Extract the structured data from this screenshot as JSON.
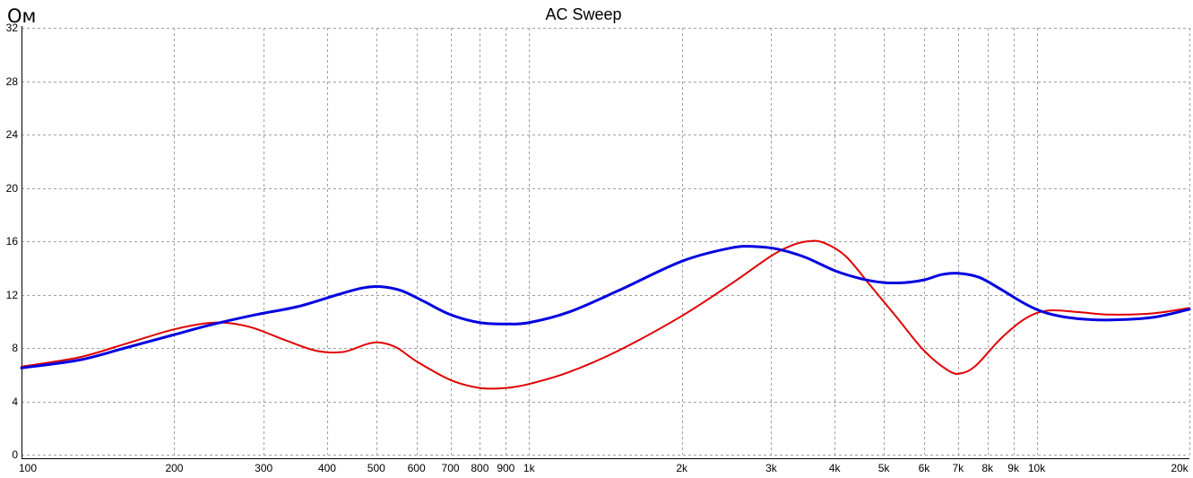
{
  "chart_data": {
    "type": "line",
    "title": "AC Sweep",
    "ylabel": "Ом",
    "xscale": "log",
    "xlim": [
      100,
      20000
    ],
    "ylim": [
      0,
      32
    ],
    "grid": true,
    "x_ticks": [
      100,
      200,
      300,
      400,
      500,
      600,
      700,
      800,
      900,
      1000,
      2000,
      3000,
      4000,
      5000,
      6000,
      7000,
      8000,
      9000,
      10000,
      20000
    ],
    "x_tick_labels": [
      "100",
      "200",
      "300",
      "400",
      "500",
      "600",
      "700",
      "800",
      "900",
      "1k",
      "2k",
      "3k",
      "4k",
      "5k",
      "6k",
      "7k",
      "8k",
      "9k",
      "10k",
      "20k"
    ],
    "y_ticks": [
      0,
      4,
      8,
      12,
      16,
      20,
      24,
      28,
      32
    ],
    "y_tick_labels": [
      "0",
      "4",
      "8",
      "12",
      "16",
      "20",
      "24",
      "28",
      "32"
    ],
    "series": [
      {
        "color": "#e00000",
        "x": [
          100,
          130,
          160,
          200,
          240,
          280,
          330,
          380,
          430,
          480,
          510,
          550,
          600,
          700,
          800,
          900,
          1000,
          1200,
          1500,
          2000,
          2500,
          3000,
          3300,
          3550,
          3800,
          4200,
          4700,
          5300,
          6000,
          6700,
          7100,
          7600,
          8500,
          9500,
          10500,
          12000,
          14000,
          17000,
          20000
        ],
        "y": [
          6.6,
          7.3,
          8.3,
          9.4,
          9.9,
          9.6,
          8.6,
          7.8,
          7.7,
          8.3,
          8.4,
          8.0,
          7.0,
          5.6,
          5.0,
          5.0,
          5.3,
          6.2,
          7.8,
          10.4,
          12.8,
          14.9,
          15.7,
          16.0,
          15.9,
          14.9,
          12.7,
          10.3,
          7.8,
          6.3,
          6.1,
          6.7,
          8.7,
          10.2,
          10.8,
          10.7,
          10.5,
          10.6,
          11.0
        ]
      },
      {
        "color": "#0000e0",
        "x": [
          100,
          130,
          160,
          200,
          240,
          290,
          350,
          420,
          470,
          510,
          560,
          620,
          700,
          800,
          900,
          1000,
          1200,
          1500,
          2000,
          2500,
          2800,
          3100,
          3500,
          4000,
          4500,
          5000,
          5500,
          6000,
          6500,
          7000,
          7700,
          8500,
          9500,
          10500,
          12000,
          14000,
          17000,
          20000
        ],
        "y": [
          6.5,
          7.1,
          8.0,
          9.0,
          9.8,
          10.5,
          11.1,
          12.0,
          12.5,
          12.6,
          12.3,
          11.5,
          10.5,
          9.9,
          9.8,
          9.9,
          10.7,
          12.3,
          14.5,
          15.5,
          15.6,
          15.4,
          14.8,
          13.8,
          13.2,
          12.9,
          12.9,
          13.1,
          13.5,
          13.6,
          13.3,
          12.4,
          11.3,
          10.6,
          10.2,
          10.1,
          10.3,
          10.9
        ]
      }
    ]
  }
}
